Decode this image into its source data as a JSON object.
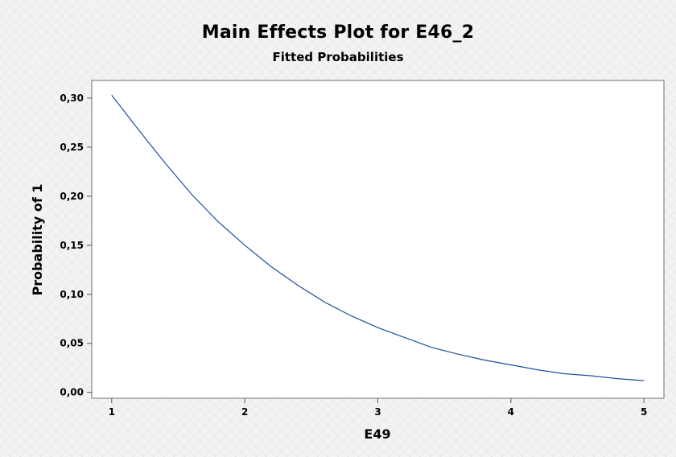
{
  "chart_data": {
    "type": "line",
    "title": "Main Effects Plot for E46_2",
    "subtitle": "Fitted Probabilities",
    "xlabel": "E49",
    "ylabel": "Probability of 1",
    "x_ticks": [
      "1",
      "2",
      "3",
      "4",
      "5"
    ],
    "y_ticks": [
      "0,00",
      "0,05",
      "0,10",
      "0,15",
      "0,20",
      "0,25",
      "0,30"
    ],
    "xlim": [
      0.85,
      5.15
    ],
    "ylim": [
      -0.006,
      0.318
    ],
    "grid": false,
    "series": [
      {
        "color": "#1f4e9c",
        "x": [
          1.0,
          1.2,
          1.4,
          1.6,
          1.8,
          2.0,
          2.2,
          2.4,
          2.6,
          2.8,
          3.0,
          3.2,
          3.4,
          3.6,
          3.8,
          4.0,
          4.2,
          4.4,
          4.6,
          4.8,
          5.0
        ],
        "y": [
          0.303,
          0.268,
          0.234,
          0.202,
          0.174,
          0.15,
          0.128,
          0.109,
          0.092,
          0.078,
          0.066,
          0.056,
          0.046,
          0.039,
          0.033,
          0.028,
          0.023,
          0.019,
          0.017,
          0.014,
          0.012
        ]
      }
    ]
  }
}
